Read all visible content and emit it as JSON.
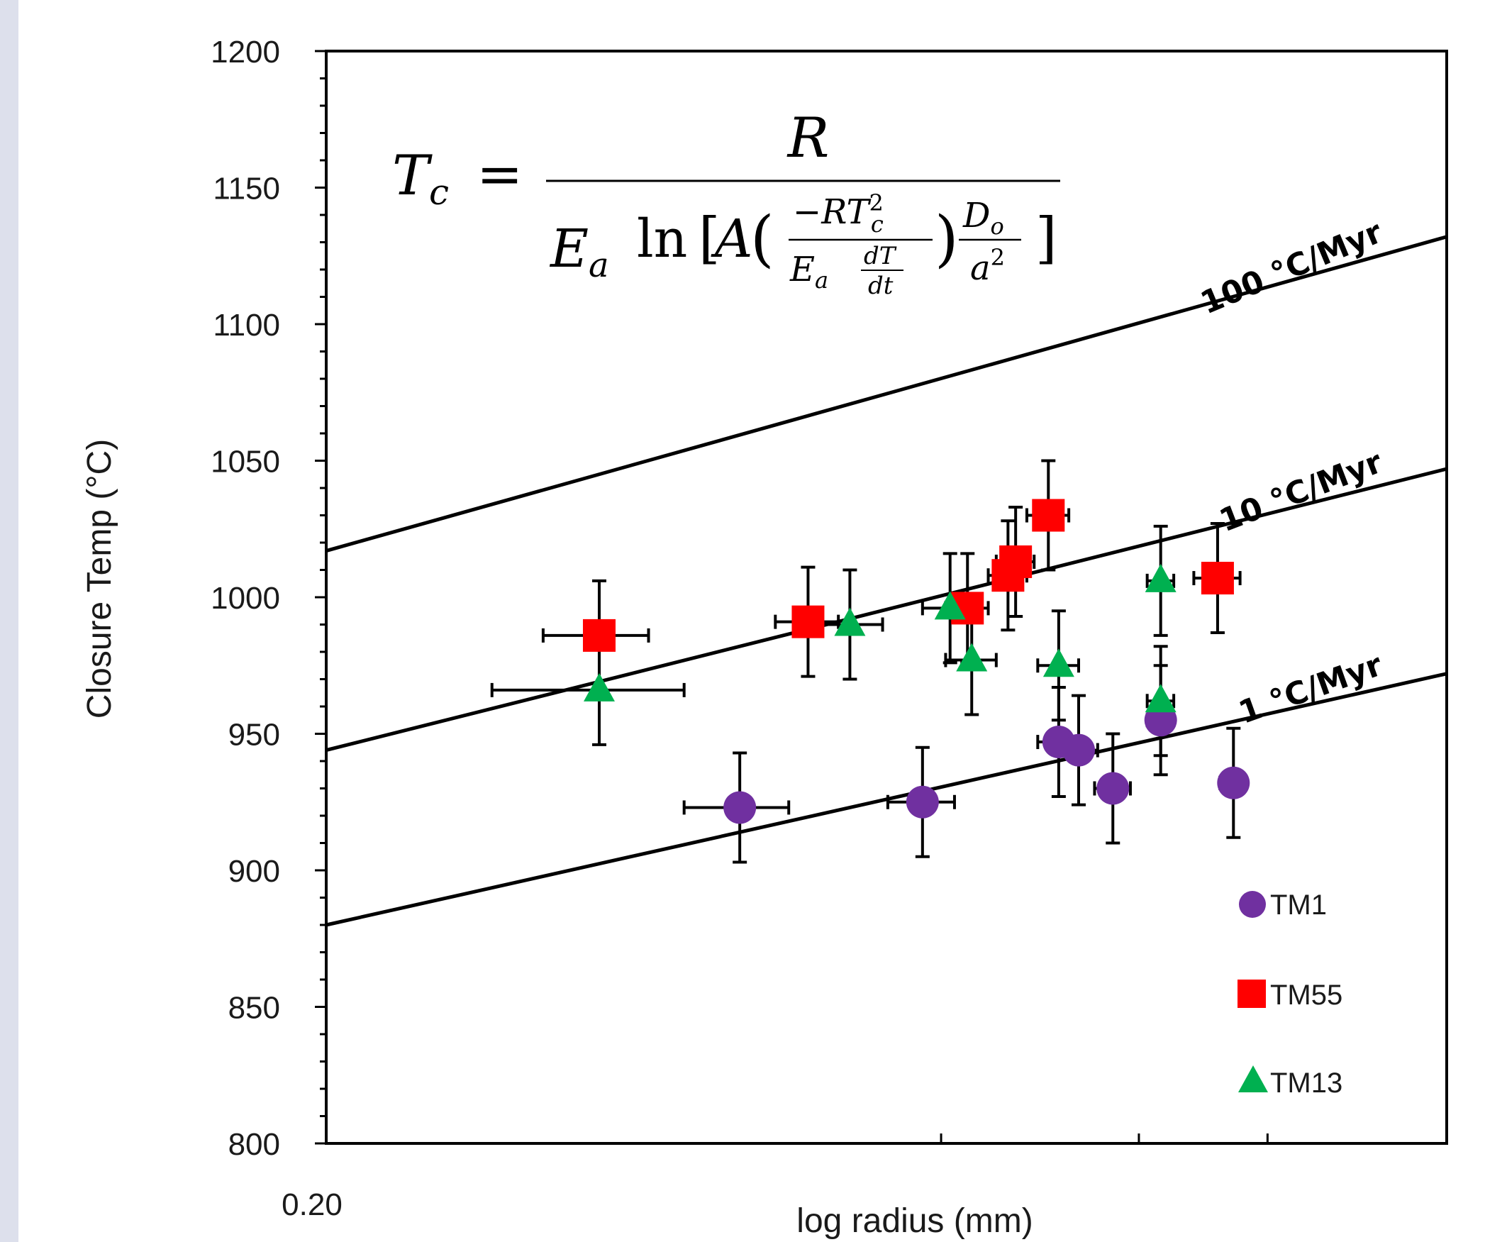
{
  "colors": {
    "TM1": "#7030a0",
    "TM55": "#ff0000",
    "TM13": "#00b050",
    "lines": "#000000",
    "left_strip": "#dde0ec"
  },
  "chart_data": {
    "type": "scatter",
    "title": "",
    "xlabel": "log radius (mm)",
    "ylabel": "Closure Temp (°C)",
    "x_scale": "log",
    "xlim": [
      0.2,
      3.1
    ],
    "ylim": [
      800,
      1200
    ],
    "y_ticks": [
      800,
      850,
      900,
      950,
      1000,
      1050,
      1100,
      1150,
      1200
    ],
    "x_tick_labels": [
      {
        "x": 0.2,
        "label": "0.20"
      }
    ],
    "x_ticks_unlabeled": [
      0.2,
      0.9,
      1.46,
      2.0
    ],
    "grid": false,
    "legend_position": "bottom-right",
    "equation": {
      "lhs": "T",
      "lhs_sub": "c",
      "numerator": "R",
      "den_coef": "E",
      "den_coef_sub": "a",
      "ln": "ln",
      "A": "A",
      "inner_num": "−RT",
      "inner_num_sup": "2",
      "inner_num_sub": "c",
      "inner_den_E": "E",
      "inner_den_E_sub": "a",
      "dT": "dT",
      "dt": "dt",
      "D": "D",
      "D_sub": "o",
      "a": "a",
      "a_sup": "2"
    },
    "reference_lines": [
      {
        "label": "100 °C/Myr",
        "points": [
          [
            0.2,
            1017
          ],
          [
            3.1,
            1132
          ]
        ]
      },
      {
        "label": "10 °C/Myr",
        "points": [
          [
            0.2,
            944
          ],
          [
            3.1,
            1047
          ]
        ]
      },
      {
        "label": "1 °C/Myr",
        "points": [
          [
            0.2,
            880
          ],
          [
            3.1,
            972
          ]
        ]
      }
    ],
    "series": [
      {
        "name": "TM1",
        "marker": "circle",
        "points": [
          {
            "x": 0.55,
            "y": 923,
            "xerr": 0.07,
            "yerr": 20
          },
          {
            "x": 0.86,
            "y": 925,
            "xerr": 0.07,
            "yerr": 20
          },
          {
            "x": 1.2,
            "y": 947,
            "xerr": 0.06,
            "yerr": 20
          },
          {
            "x": 1.26,
            "y": 944,
            "xerr": 0.06,
            "yerr": 20
          },
          {
            "x": 1.37,
            "y": 930,
            "xerr": 0.06,
            "yerr": 20
          },
          {
            "x": 1.54,
            "y": 955,
            "xerr": 0.05,
            "yerr": 20
          },
          {
            "x": 1.84,
            "y": 932,
            "xerr": 0.06,
            "yerr": 20
          }
        ]
      },
      {
        "name": "TM55",
        "marker": "square",
        "points": [
          {
            "x": 0.39,
            "y": 986,
            "xerr": 0.05,
            "yerr": 20
          },
          {
            "x": 0.65,
            "y": 991,
            "xerr": 0.05,
            "yerr": 20
          },
          {
            "x": 0.96,
            "y": 996,
            "xerr": 0.05,
            "yerr": 20
          },
          {
            "x": 1.06,
            "y": 1008,
            "xerr": 0.05,
            "yerr": 20
          },
          {
            "x": 1.08,
            "y": 1013,
            "xerr": 0.05,
            "yerr": 20
          },
          {
            "x": 1.17,
            "y": 1030,
            "xerr": 0.06,
            "yerr": 20
          },
          {
            "x": 1.77,
            "y": 1007,
            "xerr": 0.1,
            "yerr": 20
          }
        ]
      },
      {
        "name": "TM13",
        "marker": "triangle",
        "points": [
          {
            "x": 0.39,
            "y": 966,
            "xerr": 0.09,
            "yerr": 20
          },
          {
            "x": 0.72,
            "y": 990,
            "xerr": 0.06,
            "yerr": 20
          },
          {
            "x": 0.92,
            "y": 996,
            "xerr": 0.06,
            "yerr": 20
          },
          {
            "x": 0.97,
            "y": 977,
            "xerr": 0.06,
            "yerr": 20
          },
          {
            "x": 1.2,
            "y": 975,
            "xerr": 0.06,
            "yerr": 20
          },
          {
            "x": 1.54,
            "y": 1006,
            "xerr": 0.05,
            "yerr": 20
          },
          {
            "x": 1.54,
            "y": 962,
            "xerr": 0.05,
            "yerr": 20
          }
        ]
      }
    ]
  }
}
